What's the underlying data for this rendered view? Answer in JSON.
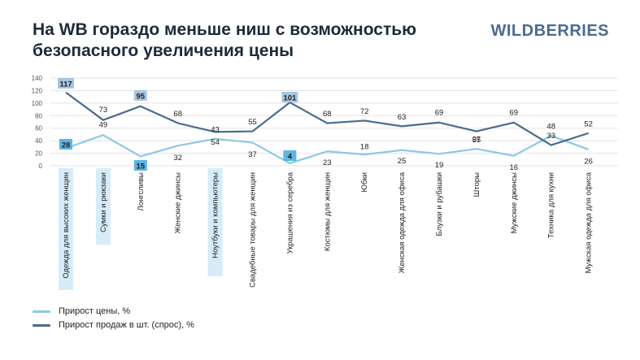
{
  "title": "На WB гораздо меньше ниш с возможностью\nбезопасного увеличения цены",
  "brand": "WILDBERRIES",
  "colors": {
    "price": "#8cc8e6",
    "sales": "#4a6b8f",
    "highlight_price": "#5bb6e3",
    "highlight_sales": "#a9c6e0",
    "highlight_category": "#d6ecf8"
  },
  "legend": [
    {
      "label": "Прирост цены, %",
      "color": "#8cc8e6"
    },
    {
      "label": "Прирост продаж в шт. (спрос), %",
      "color": "#4a6b8f"
    }
  ],
  "chart_data": {
    "type": "line",
    "categories": [
      "Одежда для высоких женщин",
      "Сумки и рюкзаки",
      "Лонгсливы",
      "Женские джинсы",
      "Ноутбуки и компьютеры",
      "Свадебные товары для женщин",
      "Украшения из серебра",
      "Костюмы для женщин",
      "Юбки",
      "Женская одежда для офиса",
      "Блузки и рубашки",
      "Шторы",
      "Мужские джинсы",
      "Техника для кухни",
      "Мужская одежда для офиса"
    ],
    "highlighted_categories": [
      0,
      1,
      4
    ],
    "series": [
      {
        "name": "Прирост цены, %",
        "values": [
          28,
          49,
          15,
          32,
          43,
          37,
          4,
          23,
          18,
          25,
          19,
          27,
          16,
          48,
          26
        ],
        "highlighted_points": [
          0,
          2,
          6
        ]
      },
      {
        "name": "Прирост продаж в шт. (спрос), %",
        "values": [
          117,
          73,
          95,
          68,
          54,
          55,
          101,
          68,
          72,
          63,
          69,
          55,
          69,
          33,
          52
        ],
        "highlighted_points": [
          0,
          2,
          6
        ]
      }
    ],
    "yticks": [
      0,
      20,
      40,
      60,
      80,
      100,
      120,
      140
    ],
    "ylim": [
      0,
      140
    ],
    "grid": true,
    "legend_position": "bottom-left"
  }
}
